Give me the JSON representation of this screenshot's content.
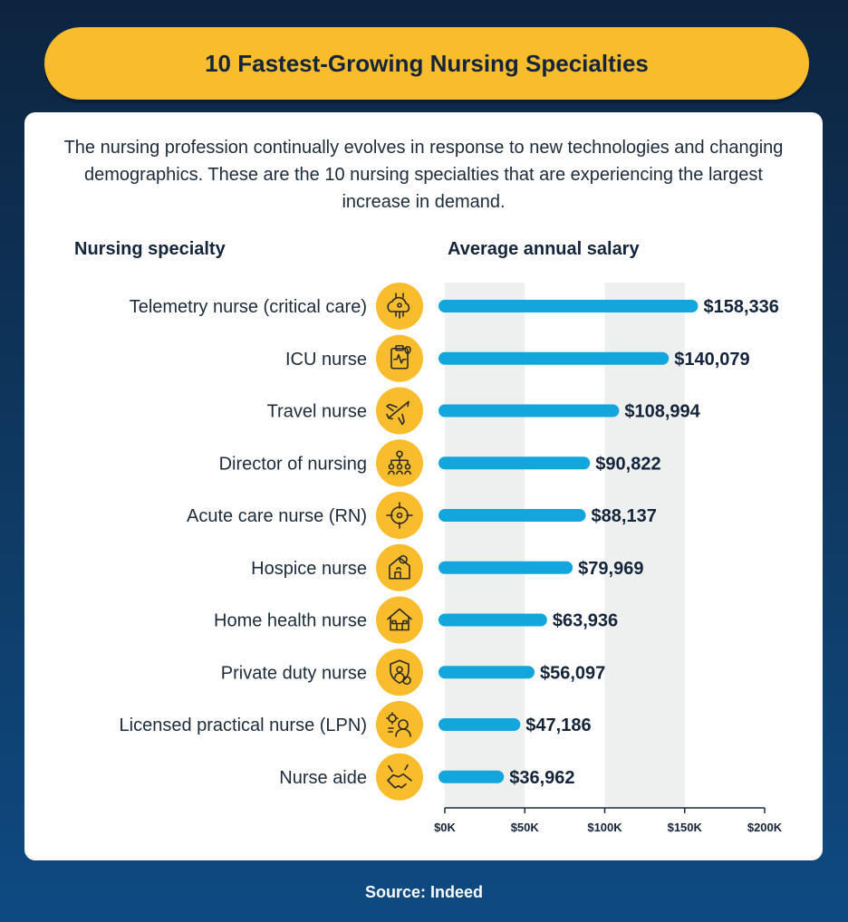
{
  "title": "10 Fastest-Growing Nursing Specialties",
  "intro": "The nursing profession continually evolves in response to new technologies and changing demographics. These are the 10 nursing specialties that are experiencing the largest increase in demand.",
  "source": "Source: Indeed",
  "colors": {
    "bar": "#12a6dd",
    "icon_circle": "#f9bc2c",
    "title_pill": "#f9bc2c",
    "band": "#eef0f0"
  },
  "chart_data": {
    "type": "bar",
    "orientation": "horizontal",
    "category_header": "Nursing specialty",
    "value_header": "Average annual salary",
    "categories": [
      "Telemetry nurse (critical care)",
      "ICU nurse",
      "Travel nurse",
      "Director of nursing",
      "Acute care nurse (RN)",
      "Hospice nurse",
      "Home health nurse",
      "Private duty nurse",
      "Licensed practical nurse (LPN)",
      "Nurse aide"
    ],
    "values": [
      158336,
      140079,
      108994,
      90822,
      88137,
      79969,
      63936,
      56097,
      47186,
      36962
    ],
    "value_labels": [
      "$158,336",
      "$140,079",
      "$108,994",
      "$90,822",
      "$88,137",
      "$79,969",
      "$63,936",
      "$56,097",
      "$47,186",
      "$36,962"
    ],
    "icons": [
      "network-cloud-icon",
      "clipboard-heartbeat-icon",
      "airplane-icon",
      "org-chart-icon",
      "target-crosshair-icon",
      "home-care-icon",
      "house-icon",
      "shield-person-icon",
      "nurse-gear-icon",
      "handshake-icon"
    ],
    "xlim": [
      0,
      200000
    ],
    "x_ticks": [
      0,
      50000,
      100000,
      150000,
      200000
    ],
    "x_tick_labels": [
      "$0K",
      "$50K",
      "$100K",
      "$150K",
      "$200K"
    ],
    "grid": "alternating vertical bands"
  }
}
